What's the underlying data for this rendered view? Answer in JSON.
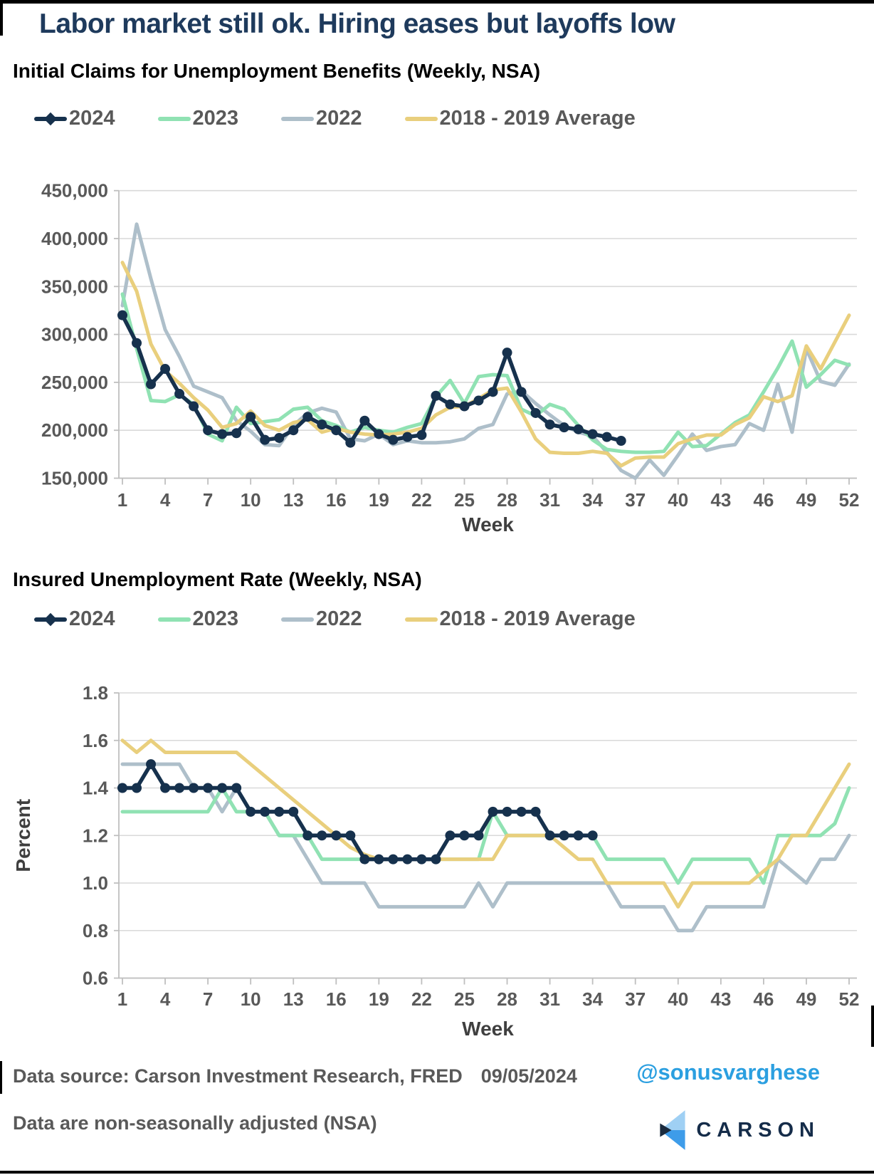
{
  "title": "Labor market still ok. Hiring eases but layoffs low",
  "footer": {
    "source": "Data source: Carson Investment Research, FRED",
    "date": "09/05/2024",
    "note": "Data are non-seasonally adjusted (NSA)",
    "handle": "@sonusvarghese",
    "logo_text": "CARSON",
    "logo_icon": "carson-arrow-mark"
  },
  "colors": {
    "title_navy": "#1e3a5c",
    "text_gray": "#595959",
    "axis_title_gray": "#3f3f3f",
    "grid": "#d9d9d9",
    "axis": "#bfbfbf",
    "handle_blue": "#2b9fe0",
    "logo_navy": "#152c49",
    "logo_light_blue": "#9fd0f4",
    "logo_mid_blue": "#3e9ce9",
    "logo_dark_notch": "#1b2b3e",
    "series_2024": "#16314d",
    "series_2023": "#90e2b3",
    "series_2022": "#aebfca",
    "series_avg": "#e9cf7d"
  },
  "chart_data": [
    {
      "type": "line",
      "title": "Initial Claims for Unemployment Benefits (Weekly, NSA)",
      "xlabel": "Week",
      "ylabel": "",
      "ylim": [
        150000,
        450000
      ],
      "yticks": [
        450000,
        400000,
        350000,
        300000,
        250000,
        200000,
        150000
      ],
      "ytick_format": "thousands",
      "xticks": [
        1,
        4,
        7,
        10,
        13,
        16,
        19,
        22,
        25,
        28,
        31,
        34,
        37,
        40,
        43,
        46,
        49,
        52
      ],
      "x_range": [
        1,
        52
      ],
      "grid": true,
      "legend_position": "top-left",
      "series": [
        {
          "name": "2022",
          "color": "#aebfca",
          "marker": false,
          "start_week": 1,
          "values": [
            330000,
            415000,
            358000,
            305000,
            277000,
            246000,
            240000,
            234000,
            210000,
            199000,
            185000,
            184000,
            205000,
            218000,
            223000,
            219000,
            191000,
            189000,
            196000,
            185000,
            189000,
            187000,
            187000,
            188000,
            191000,
            202000,
            206000,
            238000,
            241000,
            228000,
            216000,
            205000,
            198000,
            194000,
            177000,
            158000,
            150000,
            169000,
            153000,
            174000,
            196000,
            179000,
            183000,
            185000,
            207000,
            200000,
            248000,
            198000,
            285000,
            251000,
            247000,
            269000
          ]
        },
        {
          "name": "2023",
          "color": "#90e2b3",
          "marker": false,
          "start_week": 1,
          "values": [
            342000,
            285000,
            231000,
            230000,
            237000,
            227000,
            196000,
            189000,
            224000,
            207000,
            209000,
            211000,
            222000,
            224000,
            210000,
            205000,
            198000,
            203000,
            200000,
            198000,
            203000,
            207000,
            235000,
            252000,
            228000,
            256000,
            258000,
            257000,
            222000,
            215000,
            227000,
            222000,
            205000,
            190000,
            180000,
            178000,
            177000,
            177000,
            178000,
            198000,
            183000,
            184000,
            196000,
            208000,
            216000,
            240000,
            265000,
            293000,
            245000,
            258000,
            273000,
            268000
          ]
        },
        {
          "name": "2018 - 2019 Average",
          "color": "#e9cf7d",
          "marker": false,
          "start_week": 1,
          "values": [
            375000,
            345000,
            290000,
            262000,
            249000,
            234000,
            221000,
            203000,
            207000,
            220000,
            205000,
            200000,
            208000,
            211000,
            198000,
            202000,
            198000,
            196000,
            195000,
            196000,
            198000,
            202000,
            216000,
            224000,
            225000,
            233000,
            242000,
            244000,
            219000,
            191000,
            177000,
            176000,
            176000,
            178000,
            176000,
            163000,
            171000,
            172000,
            172000,
            186000,
            191000,
            195000,
            195000,
            206000,
            213000,
            235000,
            230000,
            236000,
            288000,
            264000,
            292000,
            320000
          ]
        },
        {
          "name": "2024",
          "color": "#16314d",
          "marker": true,
          "start_week": 1,
          "values": [
            320000,
            291000,
            248000,
            264000,
            238000,
            225000,
            200000,
            196000,
            197000,
            214000,
            190000,
            192000,
            200000,
            214000,
            206000,
            200000,
            187000,
            210000,
            196000,
            190000,
            193000,
            195000,
            236000,
            227000,
            225000,
            231000,
            240000,
            281000,
            240000,
            218000,
            206000,
            203000,
            201000,
            196000,
            193000,
            189000
          ]
        }
      ],
      "legend_order": [
        "2024",
        "2023",
        "2022",
        "2018 - 2019 Average"
      ]
    },
    {
      "type": "line",
      "title": "Insured Unemployment Rate (Weekly, NSA)",
      "xlabel": "Week",
      "ylabel": "Percent",
      "ylim": [
        0.6,
        1.8
      ],
      "yticks": [
        1.8,
        1.6,
        1.4,
        1.2,
        1.0,
        0.8,
        0.6
      ],
      "ytick_format": "dec1",
      "xticks": [
        1,
        4,
        7,
        10,
        13,
        16,
        19,
        22,
        25,
        28,
        31,
        34,
        37,
        40,
        43,
        46,
        49,
        52
      ],
      "x_range": [
        1,
        52
      ],
      "grid": true,
      "legend_position": "top-left",
      "series": [
        {
          "name": "2022",
          "color": "#aebfca",
          "marker": false,
          "start_week": 1,
          "values": [
            1.5,
            1.5,
            1.5,
            1.5,
            1.5,
            1.4,
            1.4,
            1.3,
            1.4,
            1.3,
            1.3,
            1.2,
            1.2,
            1.1,
            1.0,
            1.0,
            1.0,
            1.0,
            0.9,
            0.9,
            0.9,
            0.9,
            0.9,
            0.9,
            0.9,
            1.0,
            0.9,
            1.0,
            1.0,
            1.0,
            1.0,
            1.0,
            1.0,
            1.0,
            1.0,
            0.9,
            0.9,
            0.9,
            0.9,
            0.8,
            0.8,
            0.9,
            0.9,
            0.9,
            0.9,
            0.9,
            1.1,
            1.05,
            1.0,
            1.1,
            1.1,
            1.2
          ]
        },
        {
          "name": "2023",
          "color": "#90e2b3",
          "marker": false,
          "start_week": 1,
          "values": [
            1.3,
            1.3,
            1.3,
            1.3,
            1.3,
            1.3,
            1.3,
            1.4,
            1.3,
            1.3,
            1.3,
            1.2,
            1.2,
            1.2,
            1.1,
            1.1,
            1.1,
            1.1,
            1.1,
            1.1,
            1.1,
            1.1,
            1.1,
            1.1,
            1.1,
            1.1,
            1.3,
            1.2,
            1.2,
            1.2,
            1.2,
            1.2,
            1.2,
            1.2,
            1.1,
            1.1,
            1.1,
            1.1,
            1.1,
            1.0,
            1.1,
            1.1,
            1.1,
            1.1,
            1.1,
            1.0,
            1.2,
            1.2,
            1.2,
            1.2,
            1.25,
            1.4
          ]
        },
        {
          "name": "2018 - 2019 Average",
          "color": "#e9cf7d",
          "marker": false,
          "start_week": 1,
          "values": [
            1.6,
            1.55,
            1.6,
            1.55,
            1.55,
            1.55,
            1.55,
            1.55,
            1.55,
            1.5,
            1.45,
            1.4,
            1.35,
            1.3,
            1.25,
            1.2,
            1.15,
            1.12,
            1.1,
            1.1,
            1.1,
            1.1,
            1.1,
            1.1,
            1.1,
            1.1,
            1.1,
            1.2,
            1.2,
            1.2,
            1.2,
            1.15,
            1.1,
            1.1,
            1.0,
            1.0,
            1.0,
            1.0,
            1.0,
            0.9,
            1.0,
            1.0,
            1.0,
            1.0,
            1.0,
            1.05,
            1.1,
            1.2,
            1.2,
            1.3,
            1.4,
            1.5
          ]
        },
        {
          "name": "2024",
          "color": "#16314d",
          "marker": true,
          "start_week": 1,
          "values": [
            1.4,
            1.4,
            1.5,
            1.4,
            1.4,
            1.4,
            1.4,
            1.4,
            1.4,
            1.3,
            1.3,
            1.3,
            1.3,
            1.2,
            1.2,
            1.2,
            1.2,
            1.1,
            1.1,
            1.1,
            1.1,
            1.1,
            1.1,
            1.2,
            1.2,
            1.2,
            1.3,
            1.3,
            1.3,
            1.3,
            1.2,
            1.2,
            1.2,
            1.2
          ]
        }
      ],
      "legend_order": [
        "2024",
        "2023",
        "2022",
        "2018 - 2019 Average"
      ]
    }
  ]
}
